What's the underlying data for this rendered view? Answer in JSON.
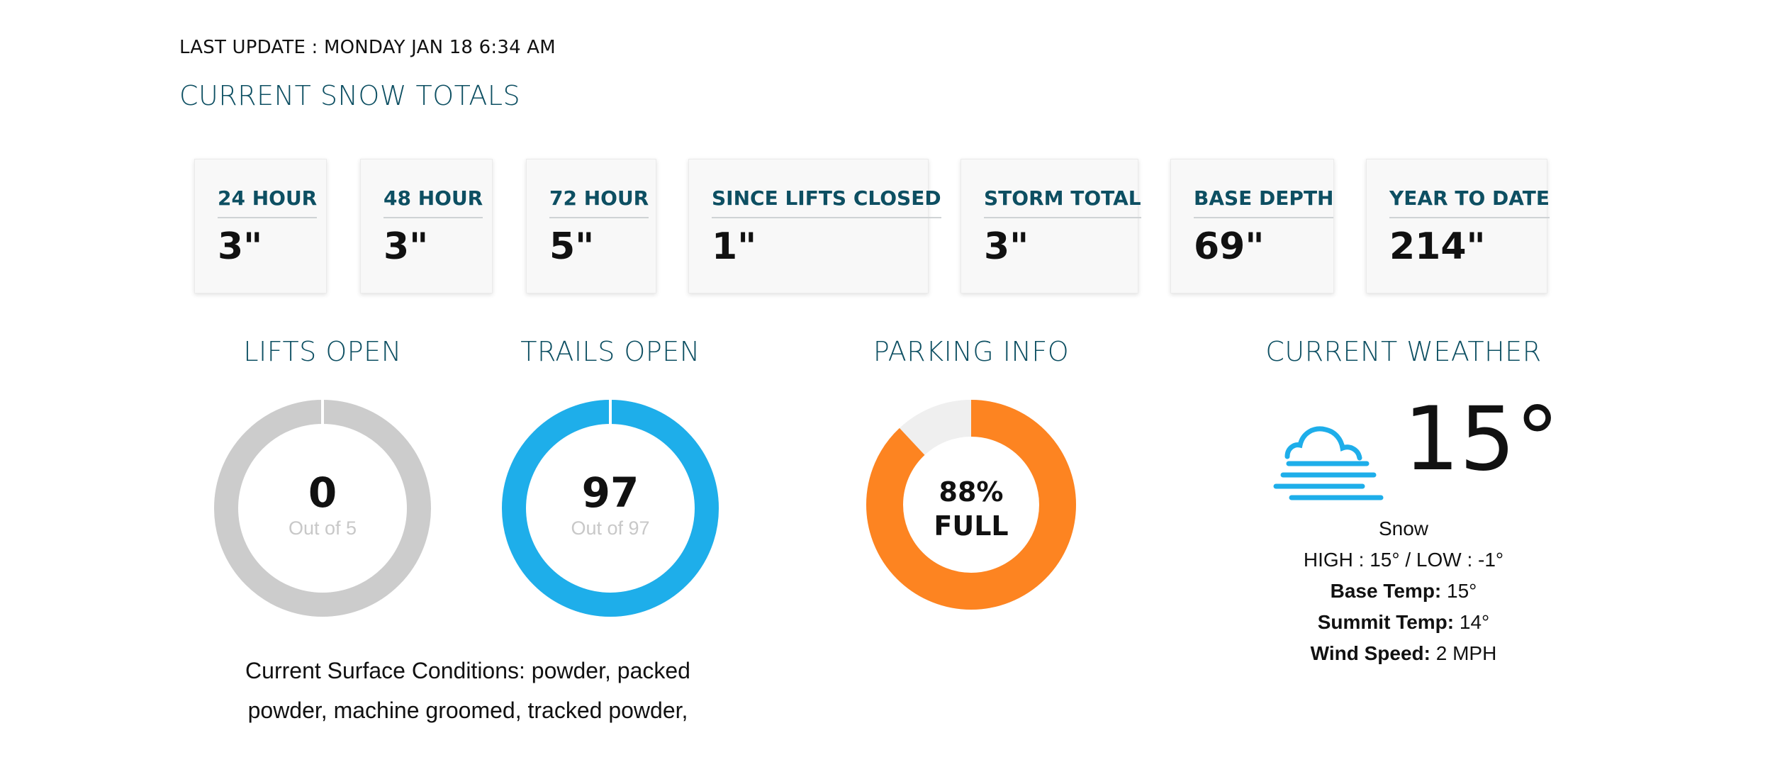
{
  "last_update": "LAST UPDATE : MONDAY JAN 18 6:34 AM",
  "snow_totals": {
    "title": "CURRENT SNOW TOTALS",
    "cards": [
      {
        "label": "24 HOUR",
        "value": "3\""
      },
      {
        "label": "48 HOUR",
        "value": "3\""
      },
      {
        "label": "72 HOUR",
        "value": "5\""
      },
      {
        "label": "SINCE LIFTS CLOSED",
        "value": "1\""
      },
      {
        "label": "STORM TOTAL",
        "value": "3\""
      },
      {
        "label": "BASE DEPTH",
        "value": "69\""
      },
      {
        "label": "YEAR TO DATE",
        "value": "214\""
      }
    ]
  },
  "lifts": {
    "title": "LIFTS OPEN",
    "open": "0",
    "out_of": "Out of 5",
    "open_value": 0,
    "total_value": 5,
    "color": "#cccccc"
  },
  "trails": {
    "title": "TRAILS OPEN",
    "open": "97",
    "out_of": "Out of 97",
    "open_value": 97,
    "total_value": 97,
    "color": "#1eaeea"
  },
  "parking": {
    "title": "PARKING INFO",
    "percent": "88%",
    "status": "FULL",
    "fill_fraction": 0.88,
    "color": "#fd8421",
    "track_color": "#efefef"
  },
  "surface_conditions": {
    "line1": "Current Surface Conditions: powder, packed",
    "line2": "powder, machine groomed, tracked powder,"
  },
  "weather": {
    "title": "CURRENT WEATHER",
    "icon": "snow-cloud-icon",
    "icon_color": "#1eaeea",
    "temperature": "15°",
    "condition": "Snow",
    "high_low": "HIGH : 15° / LOW : -1°",
    "base_temp_label": "Base Temp:",
    "base_temp_value": "15°",
    "summit_temp_label": "Summit Temp:",
    "summit_temp_value": "14°",
    "wind_speed_label": "Wind Speed:",
    "wind_speed_value": "2 MPH"
  },
  "colors": {
    "heading": "#0d4f62"
  }
}
